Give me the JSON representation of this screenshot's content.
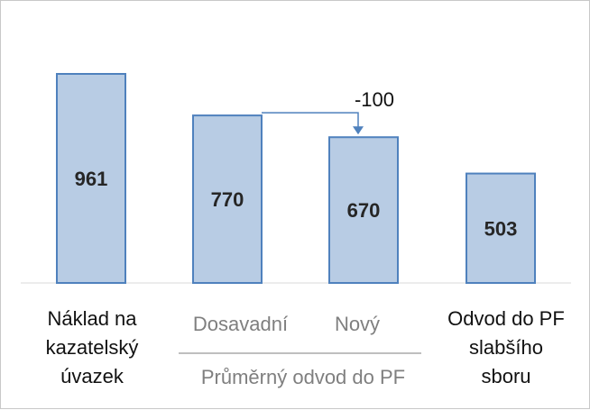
{
  "chart_data": {
    "type": "bar",
    "categories": [
      "Náklad na kazatelský úvazek",
      "Dosavadní",
      "Nový",
      "Odvod do PF slabšího sboru"
    ],
    "values": [
      961,
      770,
      670,
      503
    ],
    "data_labels": [
      "961",
      "770",
      "670",
      "503"
    ],
    "group_label": "Průměrný odvod do PF",
    "group_members": [
      "Dosavadní",
      "Nový"
    ],
    "difference_annotation": {
      "from": "Dosavadní",
      "to": "Nový",
      "label": "-100"
    },
    "ylim": [
      0,
      1100
    ],
    "y_axis_visible": false,
    "grid": false,
    "legend": "none",
    "bar_color": "#b8cce4",
    "bar_edge_color": "#4f81bd",
    "annotation_color": "#4f81bd"
  }
}
